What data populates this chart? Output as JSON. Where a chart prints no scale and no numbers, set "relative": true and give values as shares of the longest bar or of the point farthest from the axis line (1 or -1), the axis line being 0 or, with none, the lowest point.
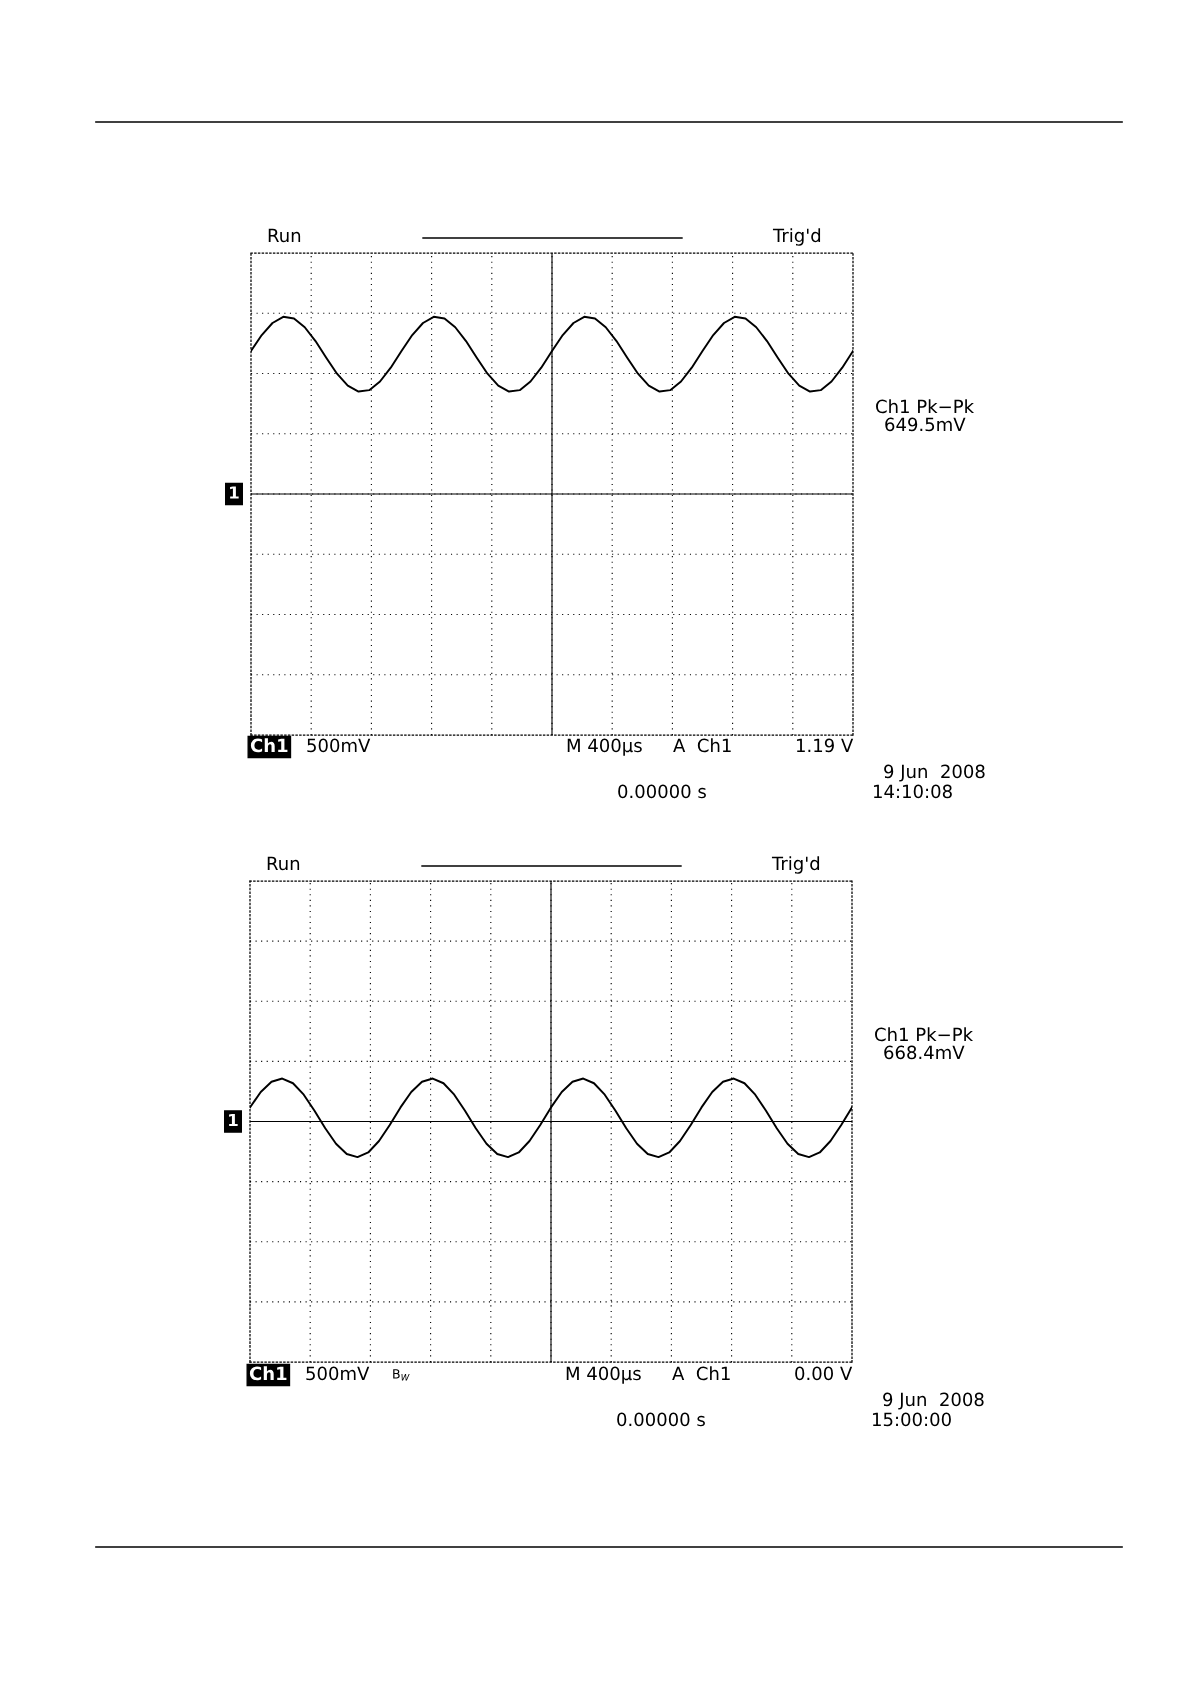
{
  "chart_data": [
    {
      "type": "line",
      "relative": true,
      "grid": true,
      "categories": [
        null,
        null,
        null,
        null,
        null,
        null,
        null,
        null,
        null,
        null,
        null,
        null,
        null,
        null,
        null,
        null,
        null,
        null,
        null,
        null,
        null,
        null,
        null,
        null,
        null,
        null,
        null,
        null,
        null,
        null,
        null,
        null,
        null,
        null,
        null,
        null,
        null,
        null,
        null,
        null,
        null,
        null,
        null,
        null,
        null,
        null,
        null,
        null,
        null,
        null,
        null,
        null,
        null,
        null,
        null,
        null,
        null
      ],
      "series": [
        {
          "color": "#000000",
          "values": [
            0.807,
            0.897,
            0.965,
            1.0,
            0.99,
            0.941,
            0.863,
            0.769,
            0.679,
            0.611,
            0.578,
            0.586,
            0.635,
            0.713,
            0.807,
            0.897,
            0.965,
            1.0,
            0.99,
            0.941,
            0.863,
            0.769,
            0.679,
            0.611,
            0.578,
            0.586,
            0.635,
            0.713,
            0.807,
            0.897,
            0.965,
            1.0,
            0.99,
            0.941,
            0.863,
            0.769,
            0.679,
            0.611,
            0.578,
            0.586,
            0.635,
            0.713,
            0.807,
            0.897,
            0.965,
            1.0,
            0.99,
            0.941,
            0.863,
            0.769,
            0.679,
            0.611,
            0.578,
            0.586,
            0.635,
            0.713,
            0.807
          ]
        }
      ],
      "annotations": [
        "Run",
        "Trig'd",
        "Ch1 Pk−Pk",
        "649.5mV",
        "Ch1",
        "500mV",
        "M 400µs",
        "A  Ch1",
        "1.19 V",
        "9 Jun  2008",
        "14:10:08",
        "0.00000 s",
        "1"
      ]
    },
    {
      "type": "line",
      "relative": true,
      "grid": true,
      "categories": [
        null,
        null,
        null,
        null,
        null,
        null,
        null,
        null,
        null,
        null,
        null,
        null,
        null,
        null,
        null,
        null,
        null,
        null,
        null,
        null,
        null,
        null,
        null,
        null,
        null,
        null,
        null,
        null,
        null,
        null,
        null,
        null,
        null,
        null,
        null,
        null,
        null,
        null,
        null,
        null,
        null,
        null,
        null,
        null,
        null,
        null,
        null,
        null,
        null,
        null,
        null,
        null,
        null,
        null,
        null,
        null,
        null
      ],
      "series": [
        {
          "color": "#000000",
          "values": [
            0.328,
            0.687,
            0.926,
            1.0,
            0.891,
            0.624,
            0.249,
            -0.158,
            -0.517,
            -0.756,
            -0.829,
            -0.721,
            -0.454,
            -0.08,
            0.328,
            0.687,
            0.926,
            1.0,
            0.891,
            0.624,
            0.249,
            -0.158,
            -0.517,
            -0.756,
            -0.829,
            -0.721,
            -0.454,
            -0.08,
            0.328,
            0.687,
            0.926,
            1.0,
            0.891,
            0.624,
            0.249,
            -0.158,
            -0.517,
            -0.756,
            -0.829,
            -0.721,
            -0.454,
            -0.08,
            0.328,
            0.687,
            0.926,
            1.0,
            0.891,
            0.624,
            0.249,
            -0.158,
            -0.517,
            -0.756,
            -0.829,
            -0.721,
            -0.454,
            -0.08,
            0.328
          ]
        }
      ],
      "annotations": [
        "Run",
        "Trig'd",
        "Ch1 Pk−Pk",
        "668.4mV",
        "Ch1",
        "500mV",
        "M 400µs",
        "A  Ch1",
        "0.00 V",
        "9 Jun  2008",
        "15:00:00",
        "0.00000 s",
        "1",
        "B$_{W}$"
      ]
    }
  ]
}
